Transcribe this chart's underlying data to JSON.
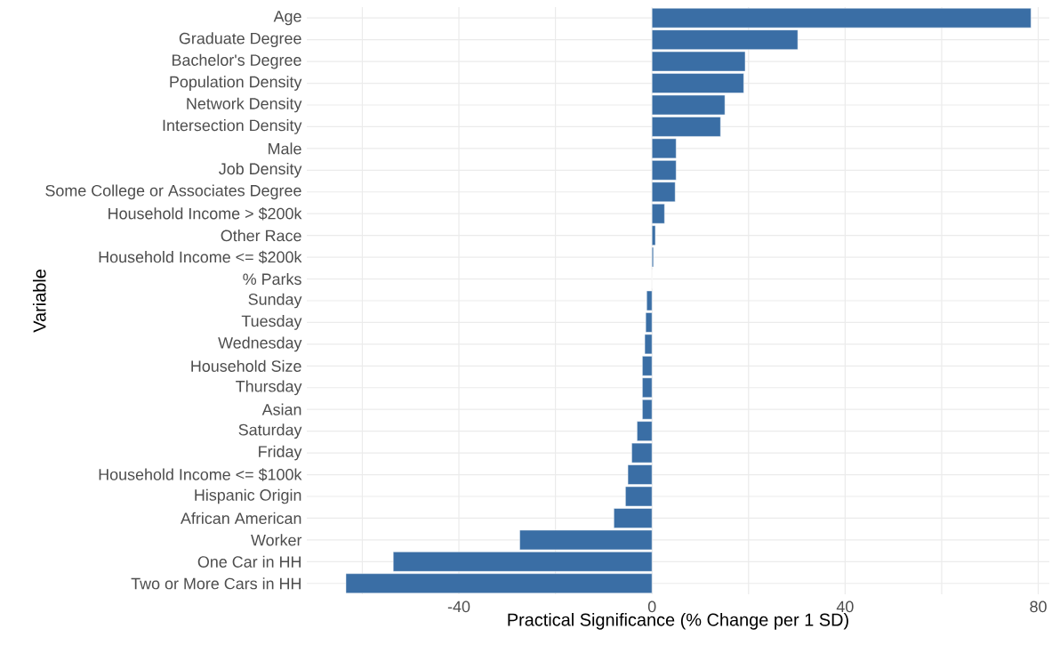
{
  "chart_data": {
    "type": "bar",
    "orientation": "horizontal",
    "xlabel": "Practical Significance (% Change per 1 SD)",
    "ylabel": "Variable",
    "categories": [
      "Age",
      "Graduate Degree",
      "Bachelor's Degree",
      "Population Density",
      "Network Density",
      "Intersection Density",
      "Male",
      "Job Density",
      "Some College or Associates Degree",
      "Household Income > $200k",
      "Other Race",
      "Household Income <= $200k",
      "% Parks",
      "Sunday",
      "Tuesday",
      "Wednesday",
      "Household Size",
      "Thursday",
      "Asian",
      "Saturday",
      "Friday",
      "Household Income <= $100k",
      "Hispanic Origin",
      "African American",
      "Worker",
      "One Car in HH",
      "Two or More Cars in HH"
    ],
    "values": [
      78.5,
      30.2,
      19.3,
      19.0,
      15.1,
      14.2,
      5.0,
      5.0,
      4.8,
      2.6,
      0.7,
      0.3,
      0,
      -1.1,
      -1.3,
      -1.5,
      -2.0,
      -2.0,
      -2.0,
      -3.1,
      -4.2,
      -5.0,
      -5.5,
      -7.9,
      -27.4,
      -53.6,
      -63.4
    ],
    "color": "#3a6ea5",
    "xlim": [
      -71.5,
      82.3
    ],
    "xticks": [
      {
        "value": -60,
        "label": null
      },
      -40,
      {
        "value": -20,
        "label": null
      },
      0,
      {
        "value": 20,
        "label": null
      },
      40,
      {
        "value": 60,
        "label": null
      },
      80
    ],
    "grid": true
  }
}
